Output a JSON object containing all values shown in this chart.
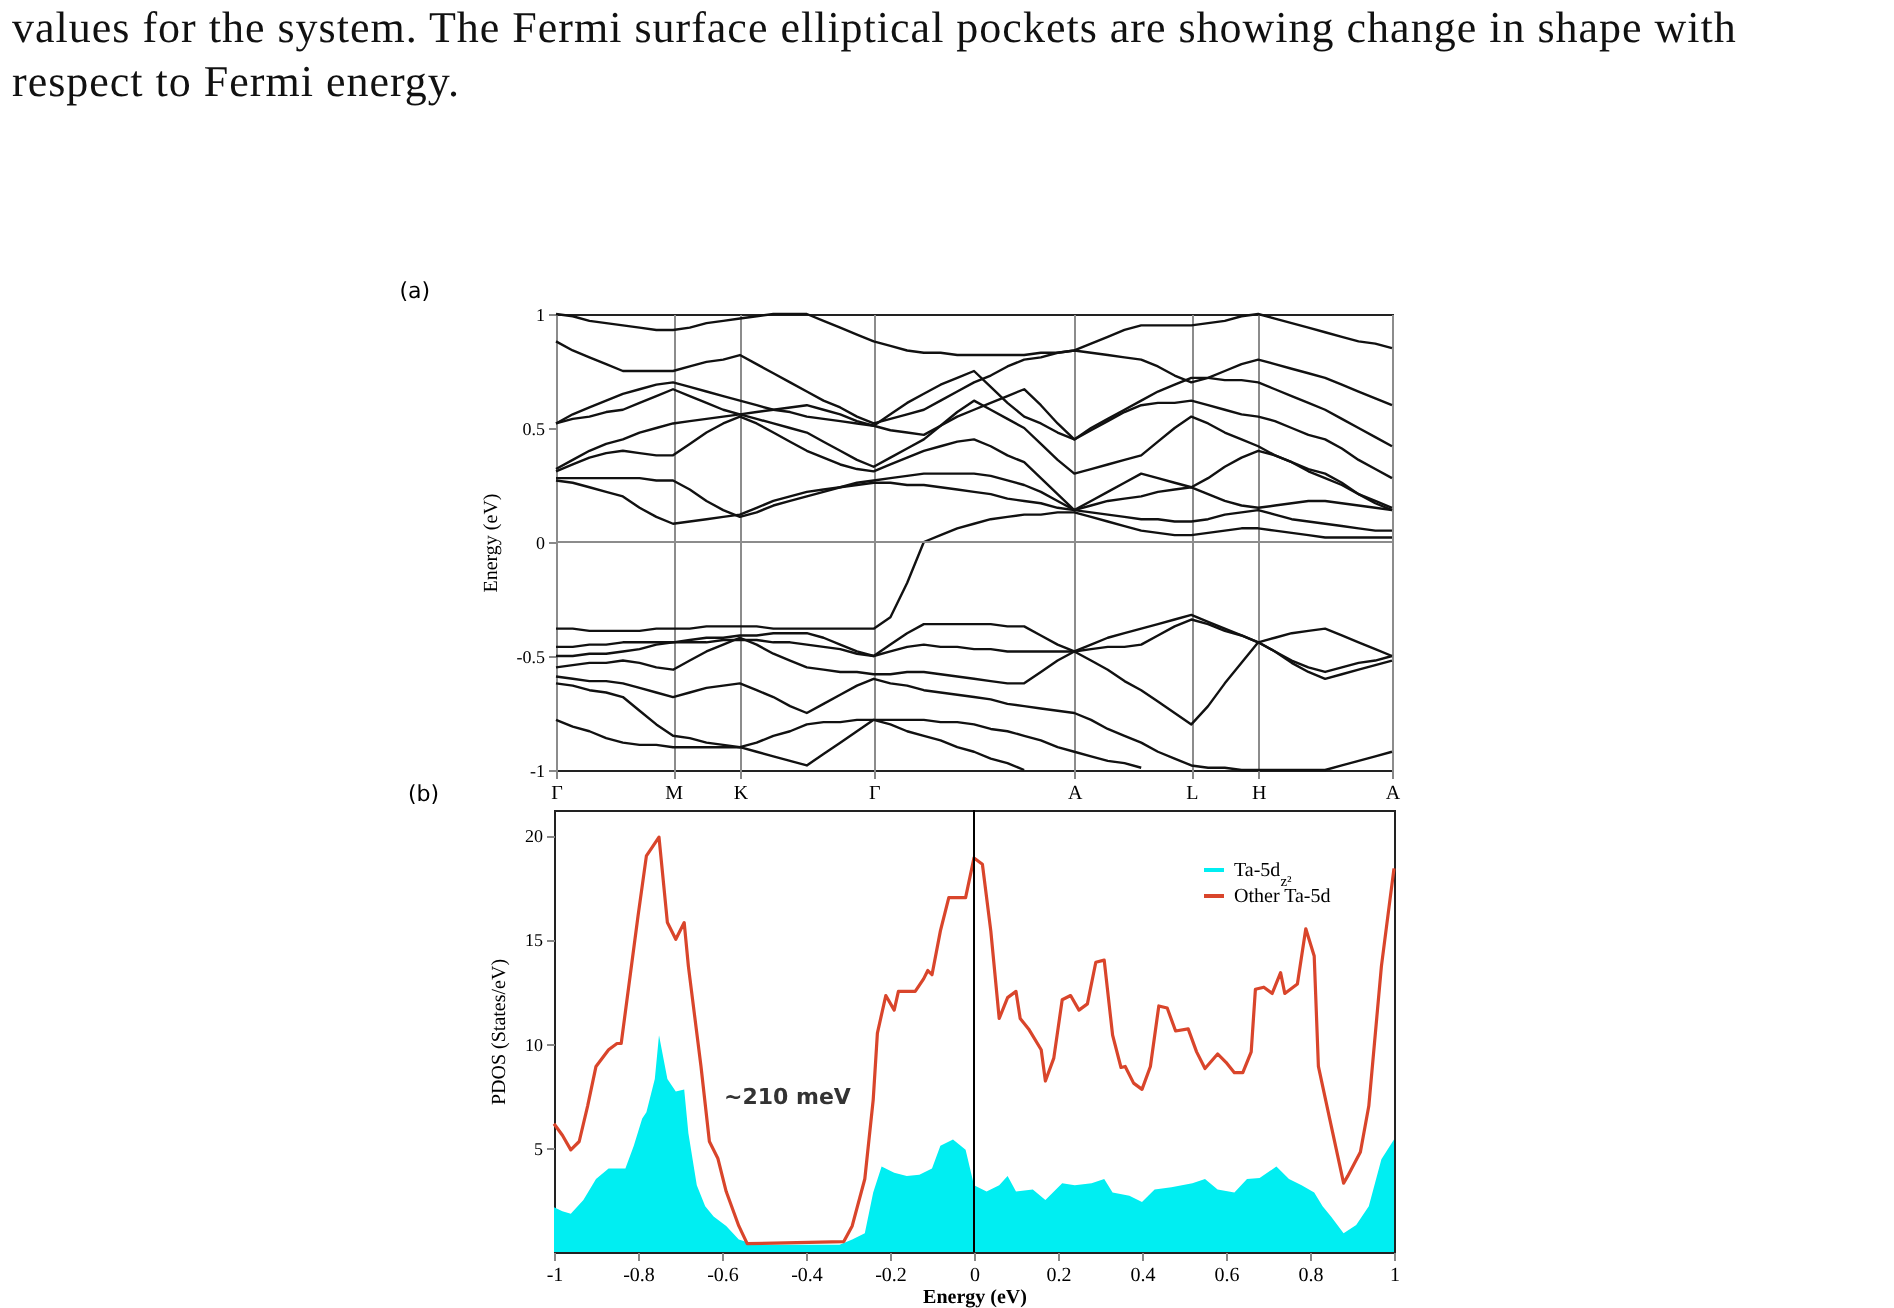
{
  "chart_data": [
    {
      "type": "line",
      "title": "(a)",
      "ylabel": "Energy (eV)",
      "annotations": [
        "values for the system. The Fermi surface elliptical pockets are showing change in shape with respect to Fermi energy."
      ],
      "categories": [
        "Γ",
        null,
        null,
        null,
        null,
        null,
        null,
        "M",
        null,
        null,
        null,
        "K",
        null,
        null,
        null,
        null,
        null,
        null,
        null,
        "Γ",
        null,
        null,
        null,
        null,
        null,
        null,
        null,
        null,
        null,
        null,
        null,
        "A",
        null,
        null,
        null,
        null,
        null,
        null,
        "L",
        null,
        null,
        null,
        "H",
        null,
        null,
        null,
        null,
        null,
        null,
        null,
        "A"
      ],
      "ylim": [
        -1,
        1
      ],
      "yticks": [
        -1,
        -0.5,
        0,
        0.5,
        1
      ],
      "grid": "x",
      "ref_lines": [
        {
          "axis": "y",
          "value": 0,
          "color": "#8c8c8c"
        }
      ],
      "series": [
        {
          "color": "#111111",
          "values": [
            0.27,
            0.26,
            0.24,
            0.22,
            0.2,
            0.15,
            0.11,
            0.08,
            0.09,
            0.1,
            0.11,
            0.12,
            0.15,
            0.18,
            0.2,
            0.22,
            0.23,
            0.24,
            0.25,
            0.26,
            0.26,
            0.25,
            0.25,
            0.24,
            0.23,
            0.22,
            0.21,
            0.19,
            0.18,
            0.17,
            0.15,
            0.14,
            0.13,
            0.12,
            0.11,
            0.1,
            0.1,
            0.09,
            0.09,
            0.1,
            0.12,
            0.13,
            0.14,
            0.12,
            0.1,
            0.09,
            0.08,
            0.07,
            0.06,
            0.05,
            0.05
          ]
        },
        {
          "color": "#111111",
          "values": [
            0.28,
            0.28,
            0.28,
            0.28,
            0.28,
            0.28,
            0.27,
            0.27,
            0.23,
            0.18,
            0.14,
            0.11,
            0.13,
            0.16,
            0.18,
            0.2,
            0.22,
            0.24,
            0.26,
            0.27,
            0.28,
            0.29,
            0.3,
            0.3,
            0.3,
            0.3,
            0.29,
            0.27,
            0.25,
            0.22,
            0.18,
            0.14,
            0.16,
            0.18,
            0.19,
            0.2,
            0.22,
            0.23,
            0.24,
            0.21,
            0.18,
            0.16,
            0.15,
            0.16,
            0.17,
            0.18,
            0.18,
            0.17,
            0.16,
            0.15,
            0.14
          ]
        },
        {
          "color": "#111111",
          "values": [
            0.31,
            0.34,
            0.37,
            0.39,
            0.4,
            0.39,
            0.38,
            0.38,
            0.43,
            0.48,
            0.52,
            0.55,
            0.52,
            0.48,
            0.44,
            0.4,
            0.37,
            0.34,
            0.32,
            0.31,
            0.34,
            0.37,
            0.4,
            0.42,
            0.44,
            0.45,
            0.42,
            0.38,
            0.35,
            0.28,
            0.21,
            0.14,
            0.18,
            0.22,
            0.26,
            0.3,
            0.28,
            0.26,
            0.24,
            0.28,
            0.33,
            0.37,
            0.4,
            0.38,
            0.35,
            0.32,
            0.3,
            0.26,
            0.21,
            0.17,
            0.14
          ]
        },
        {
          "color": "#111111",
          "values": [
            0.32,
            0.36,
            0.4,
            0.43,
            0.45,
            0.48,
            0.5,
            0.52,
            0.53,
            0.54,
            0.55,
            0.56,
            0.54,
            0.52,
            0.5,
            0.48,
            0.44,
            0.4,
            0.36,
            0.33,
            0.37,
            0.41,
            0.45,
            0.51,
            0.57,
            0.62,
            0.58,
            0.54,
            0.5,
            0.43,
            0.36,
            0.3,
            0.32,
            0.34,
            0.36,
            0.38,
            0.44,
            0.5,
            0.55,
            0.52,
            0.48,
            0.45,
            0.42,
            0.38,
            0.35,
            0.31,
            0.28,
            0.25,
            0.21,
            0.18,
            0.15
          ]
        },
        {
          "color": "#111111",
          "values": [
            0.52,
            0.54,
            0.55,
            0.57,
            0.58,
            0.61,
            0.64,
            0.67,
            0.64,
            0.61,
            0.58,
            0.56,
            0.57,
            0.58,
            0.59,
            0.6,
            0.58,
            0.56,
            0.53,
            0.51,
            0.49,
            0.48,
            0.47,
            0.51,
            0.55,
            0.58,
            0.61,
            0.64,
            0.67,
            0.6,
            0.52,
            0.45,
            0.49,
            0.53,
            0.57,
            0.6,
            0.61,
            0.61,
            0.62,
            0.6,
            0.58,
            0.56,
            0.55,
            0.53,
            0.5,
            0.47,
            0.45,
            0.41,
            0.36,
            0.32,
            0.28
          ]
        },
        {
          "color": "#111111",
          "values": [
            0.52,
            0.56,
            0.59,
            0.62,
            0.65,
            0.67,
            0.69,
            0.7,
            0.68,
            0.66,
            0.64,
            0.62,
            0.6,
            0.58,
            0.57,
            0.55,
            0.54,
            0.53,
            0.52,
            0.51,
            0.56,
            0.61,
            0.65,
            0.69,
            0.72,
            0.75,
            0.68,
            0.61,
            0.55,
            0.52,
            0.48,
            0.45,
            0.5,
            0.54,
            0.58,
            0.62,
            0.66,
            0.69,
            0.72,
            0.72,
            0.71,
            0.71,
            0.7,
            0.67,
            0.64,
            0.61,
            0.58,
            0.54,
            0.5,
            0.46,
            0.42
          ]
        },
        {
          "color": "#111111",
          "values": [
            0.88,
            0.84,
            0.81,
            0.78,
            0.75,
            0.75,
            0.75,
            0.75,
            0.77,
            0.79,
            0.8,
            0.82,
            0.78,
            0.74,
            0.7,
            0.66,
            0.62,
            0.59,
            0.55,
            0.52,
            0.54,
            0.56,
            0.58,
            0.62,
            0.66,
            0.7,
            0.73,
            0.77,
            0.8,
            0.81,
            0.83,
            0.84,
            0.83,
            0.82,
            0.81,
            0.8,
            0.77,
            0.73,
            0.7,
            0.72,
            0.75,
            0.78,
            0.8,
            0.78,
            0.76,
            0.74,
            0.72,
            0.69,
            0.66,
            0.63,
            0.6
          ]
        },
        {
          "color": "#111111",
          "values": [
            1,
            0.99,
            0.97,
            0.96,
            0.95,
            0.94,
            0.93,
            0.93,
            0.94,
            0.96,
            0.97,
            0.98,
            0.99,
            1,
            1,
            1,
            0.97,
            0.94,
            0.91,
            0.88,
            0.86,
            0.84,
            0.83,
            0.83,
            0.82,
            0.82,
            0.82,
            0.82,
            0.82,
            0.83,
            0.83,
            0.84,
            0.87,
            0.9,
            0.93,
            0.95,
            0.95,
            0.95,
            0.95,
            0.96,
            0.97,
            0.99,
            1,
            0.98,
            0.96,
            0.94,
            0.92,
            0.9,
            0.88,
            0.87,
            0.85
          ]
        },
        {
          "color": "#111111",
          "values": [
            -0.38,
            -0.38,
            -0.39,
            -0.39,
            -0.39,
            -0.39,
            -0.38,
            -0.38,
            -0.38,
            -0.37,
            -0.37,
            -0.37,
            -0.37,
            -0.38,
            -0.38,
            -0.38,
            -0.38,
            -0.38,
            -0.38,
            -0.38,
            -0.33,
            -0.18,
            0,
            0.03,
            0.06,
            0.08,
            0.1,
            0.11,
            0.12,
            0.12,
            0.13,
            0.13,
            0.11,
            0.09,
            0.07,
            0.05,
            0.04,
            0.03,
            0.03,
            0.04,
            0.05,
            0.06,
            0.06,
            0.05,
            0.04,
            0.03,
            0.02,
            0.02,
            0.02,
            0.02,
            0.02
          ]
        },
        {
          "color": "#111111",
          "values": [
            -0.46,
            -0.46,
            -0.45,
            -0.45,
            -0.44,
            -0.44,
            -0.44,
            -0.44,
            -0.43,
            -0.42,
            -0.42,
            -0.41,
            -0.41,
            -0.4,
            -0.4,
            -0.4,
            -0.42,
            -0.45,
            -0.48,
            -0.5,
            -0.45,
            -0.4,
            -0.36,
            -0.36,
            -0.36,
            -0.36,
            -0.36,
            -0.37,
            -0.37,
            -0.41,
            -0.45,
            -0.48,
            -0.45,
            -0.42,
            -0.4,
            -0.38,
            -0.36,
            -0.34,
            -0.32,
            -0.35,
            -0.38,
            -0.41,
            -0.44,
            -0.42,
            -0.4,
            -0.39,
            -0.38,
            -0.41,
            -0.44,
            -0.47,
            -0.5
          ]
        },
        {
          "color": "#111111",
          "values": [
            -0.5,
            -0.5,
            -0.49,
            -0.49,
            -0.48,
            -0.47,
            -0.45,
            -0.44,
            -0.44,
            -0.44,
            -0.43,
            -0.43,
            -0.43,
            -0.44,
            -0.44,
            -0.45,
            -0.46,
            -0.47,
            -0.49,
            -0.5,
            -0.48,
            -0.46,
            -0.45,
            -0.46,
            -0.46,
            -0.47,
            -0.47,
            -0.48,
            -0.48,
            -0.48,
            -0.48,
            -0.48,
            -0.47,
            -0.46,
            -0.46,
            -0.45,
            -0.41,
            -0.37,
            -0.34,
            -0.36,
            -0.39,
            -0.41,
            -0.44,
            -0.48,
            -0.52,
            -0.55,
            -0.57,
            -0.55,
            -0.53,
            -0.52,
            -0.5
          ]
        },
        {
          "color": "#111111",
          "values": [
            -0.55,
            -0.54,
            -0.53,
            -0.53,
            -0.52,
            -0.53,
            -0.55,
            -0.56,
            -0.52,
            -0.48,
            -0.45,
            -0.42,
            -0.45,
            -0.49,
            -0.52,
            -0.55,
            -0.56,
            -0.57,
            -0.57,
            -0.58,
            -0.58,
            -0.57,
            -0.57,
            -0.58,
            -0.59,
            -0.6,
            -0.61,
            -0.62,
            -0.62,
            -0.57,
            -0.52,
            -0.48,
            -0.52,
            -0.56,
            -0.61,
            -0.65,
            -0.7,
            -0.75,
            -0.8,
            -0.72,
            -0.62,
            -0.53,
            -0.44,
            -0.48,
            -0.53,
            -0.57,
            -0.6,
            -0.58,
            -0.56,
            -0.54,
            -0.52
          ]
        },
        {
          "color": "#111111",
          "values": [
            -0.59,
            -0.6,
            -0.61,
            -0.61,
            -0.62,
            -0.64,
            -0.66,
            -0.68,
            -0.66,
            -0.64,
            -0.63,
            -0.62,
            -0.65,
            -0.68,
            -0.72,
            -0.75,
            -0.71,
            -0.67,
            -0.63,
            -0.6,
            -0.62,
            -0.63,
            -0.65,
            -0.66,
            -0.67,
            -0.68,
            -0.69,
            -0.71,
            -0.72,
            -0.73,
            -0.74,
            -0.75,
            -0.78,
            -0.82,
            -0.85,
            -0.88,
            -0.92,
            -0.95,
            -0.98,
            -0.99,
            -0.99,
            -1,
            -1,
            -1,
            -1,
            -1,
            -1,
            -0.98,
            -0.96,
            -0.94,
            -0.92
          ]
        },
        {
          "color": "#111111",
          "values": [
            -0.62,
            -0.63,
            -0.65,
            -0.66,
            -0.68,
            -0.74,
            -0.8,
            -0.85,
            -0.86,
            -0.88,
            -0.89,
            -0.9,
            -0.88,
            -0.85,
            -0.83,
            -0.8,
            -0.79,
            -0.79,
            -0.78,
            -0.78,
            -0.78,
            -0.78,
            -0.78,
            -0.79,
            -0.79,
            -0.8,
            -0.82,
            -0.83,
            -0.85,
            -0.87,
            -0.9,
            -0.92,
            -0.94,
            -0.96,
            -0.97,
            -0.99,
            null,
            null,
            null,
            null,
            null,
            null,
            null,
            null,
            null,
            null,
            null,
            null,
            null,
            null,
            null
          ]
        },
        {
          "color": "#111111",
          "values": [
            -0.78,
            -0.81,
            -0.83,
            -0.86,
            -0.88,
            -0.89,
            -0.89,
            -0.9,
            -0.9,
            -0.9,
            -0.9,
            -0.9,
            -0.92,
            -0.94,
            -0.96,
            -0.98,
            -0.93,
            -0.88,
            -0.83,
            -0.78,
            -0.8,
            -0.83,
            -0.85,
            -0.87,
            -0.9,
            -0.92,
            -0.95,
            -0.97,
            -1,
            null,
            null,
            null,
            null,
            null,
            null,
            null,
            null,
            null,
            null,
            null,
            null,
            null,
            null,
            null,
            null,
            null,
            null,
            null,
            null,
            null,
            null
          ]
        }
      ]
    },
    {
      "type": "line",
      "title": "(b)",
      "xlabel": "Energy (eV)",
      "ylabel": "PDOS (States/eV)",
      "xlim": [
        -1,
        1
      ],
      "xticks": [
        -1,
        -0.8,
        -0.6,
        -0.4,
        -0.2,
        0,
        0.2,
        0.4,
        0.6,
        0.8,
        1
      ],
      "ylim": [
        0,
        21.2
      ],
      "yticks": [
        5,
        10,
        15,
        20
      ],
      "legend": "top right",
      "ref_lines": [
        {
          "axis": "x",
          "value": 0,
          "color": "#000000"
        }
      ],
      "annotations": [
        "~210 meV"
      ],
      "series": [
        {
          "name": "Ta-5d$_{z²}$",
          "type": "area",
          "color": "#00eef2",
          "x": [
            -1,
            -0.98,
            -0.96,
            -0.93,
            -0.9,
            -0.87,
            -0.83,
            -0.81,
            -0.79,
            -0.78,
            -0.76,
            -0.75,
            -0.73,
            -0.71,
            -0.69,
            -0.68,
            -0.66,
            -0.64,
            -0.62,
            -0.59,
            -0.56,
            -0.52,
            -0.32,
            -0.29,
            -0.26,
            -0.24,
            -0.22,
            -0.19,
            -0.16,
            -0.13,
            -0.1,
            -0.08,
            -0.05,
            -0.02,
            0,
            0.03,
            0.06,
            0.08,
            0.1,
            0.14,
            0.17,
            0.21,
            0.24,
            0.28,
            0.31,
            0.33,
            0.37,
            0.4,
            0.43,
            0.47,
            0.52,
            0.55,
            0.58,
            0.62,
            0.65,
            0.68,
            0.72,
            0.75,
            0.78,
            0.81,
            0.83,
            0.85,
            0.88,
            0.91,
            0.94,
            0.97,
            1
          ],
          "values": [
            2.15,
            1.96,
            1.83,
            2.5,
            3.5,
            4,
            4,
            5.1,
            6.4,
            6.7,
            8.3,
            10.4,
            8.3,
            7.7,
            7.8,
            5.7,
            3.2,
            2.2,
            1.7,
            1.25,
            0.6,
            0.35,
            0.35,
            0.6,
            0.9,
            2.85,
            4.1,
            3.8,
            3.65,
            3.7,
            4,
            5.1,
            5.4,
            4.9,
            3.2,
            2.9,
            3.2,
            3.65,
            2.9,
            3,
            2.5,
            3.3,
            3.2,
            3.3,
            3.5,
            2.85,
            2.7,
            2.4,
            3,
            3.1,
            3.3,
            3.5,
            3,
            2.85,
            3.5,
            3.55,
            4.1,
            3.5,
            3.2,
            2.85,
            2.2,
            1.7,
            0.9,
            1.3,
            2.2,
            4.45,
            5.4
          ]
        },
        {
          "name": "Other Ta-5d",
          "color": "#d9452b",
          "x": [
            -1,
            -0.98,
            -0.96,
            -0.94,
            -0.92,
            -0.9,
            -0.87,
            -0.85,
            -0.84,
            -0.8,
            -0.78,
            -0.75,
            -0.73,
            -0.71,
            -0.69,
            -0.68,
            -0.65,
            -0.63,
            -0.61,
            -0.59,
            -0.56,
            -0.54,
            -0.31,
            -0.29,
            -0.26,
            -0.24,
            -0.23,
            -0.21,
            -0.19,
            -0.18,
            -0.14,
            -0.12,
            -0.11,
            -0.1,
            -0.08,
            -0.06,
            -0.02,
            0,
            0.02,
            0.04,
            0.06,
            0.08,
            0.1,
            0.11,
            0.13,
            0.16,
            0.17,
            0.19,
            0.21,
            0.23,
            0.25,
            0.27,
            0.29,
            0.31,
            0.33,
            0.35,
            0.36,
            0.38,
            0.4,
            0.42,
            0.44,
            0.46,
            0.48,
            0.51,
            0.53,
            0.55,
            0.58,
            0.6,
            0.62,
            0.64,
            0.66,
            0.67,
            0.69,
            0.71,
            0.73,
            0.74,
            0.77,
            0.79,
            0.81,
            0.82,
            0.85,
            0.88,
            0.89,
            0.92,
            0.94,
            0.97,
            1
          ],
          "values": [
            6.15,
            5.6,
            4.9,
            5.3,
            7,
            8.9,
            9.7,
            10,
            10,
            16.1,
            19,
            19.9,
            15.8,
            15,
            15.8,
            13.7,
            8.9,
            5.3,
            4.5,
            2.9,
            1.25,
            0.4,
            0.5,
            1.25,
            3.5,
            7.3,
            10.5,
            12.3,
            11.6,
            12.5,
            12.5,
            13.1,
            13.5,
            13.3,
            15.4,
            17,
            17,
            18.9,
            18.6,
            15.4,
            11.2,
            12.2,
            12.5,
            11.2,
            10.7,
            9.7,
            8.2,
            9.3,
            12.1,
            12.3,
            11.6,
            11.9,
            13.9,
            14,
            10.4,
            8.85,
            8.9,
            8.1,
            7.8,
            8.9,
            11.8,
            11.7,
            10.6,
            10.7,
            9.6,
            8.8,
            9.5,
            9.1,
            8.6,
            8.6,
            9.6,
            12.6,
            12.7,
            12.4,
            13.4,
            12.4,
            12.85,
            15.5,
            14.2,
            8.9,
            6.1,
            3.3,
            3.65,
            4.8,
            7,
            13.7,
            18.4
          ]
        }
      ]
    }
  ]
}
